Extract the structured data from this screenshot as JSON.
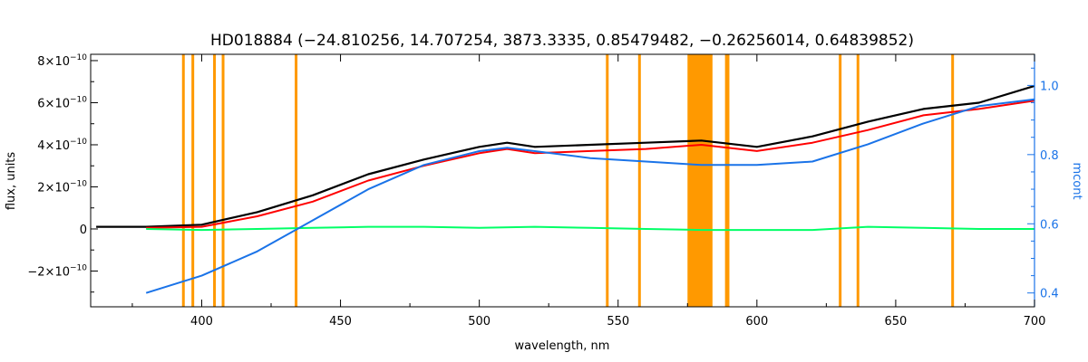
{
  "chart_data": {
    "type": "line",
    "title": "HD018884   (−24.810256, 14.707254, 3873.3335, 0.85479482, −0.26256014, 0.64839852)",
    "xlabel": "wavelength, nm",
    "ylabel": "flux, units",
    "ylabel_right": "mcont",
    "xlim": [
      360,
      700
    ],
    "ylim": [
      -3.7e-10,
      8.3e-10
    ],
    "ylim_right": [
      0.36,
      1.09
    ],
    "x_ticks": [
      "400",
      "450",
      "500",
      "550",
      "600",
      "650",
      "700"
    ],
    "x_tick_values": [
      400,
      450,
      500,
      550,
      600,
      650,
      700
    ],
    "y_ticks": [
      {
        "value": 8e-10,
        "label": "8×10",
        "exp": "−10"
      },
      {
        "value": 6e-10,
        "label": "6×10",
        "exp": "−10"
      },
      {
        "value": 4e-10,
        "label": "4×10",
        "exp": "−10"
      },
      {
        "value": 2e-10,
        "label": "2×10",
        "exp": "−10"
      },
      {
        "value": 0,
        "label": "0",
        "exp": ""
      },
      {
        "value": -2e-10,
        "label": "−2×10",
        "exp": "−10"
      }
    ],
    "y_ticks_right": [
      "0.4",
      "0.6",
      "0.8",
      "1.0"
    ],
    "y_tick_values_right": [
      0.4,
      0.6,
      0.8,
      1.0
    ],
    "masked_lines": [
      393.4,
      396.8,
      404.6,
      407.7,
      434.0,
      546.1,
      557.7,
      589.0,
      589.6,
      630.0,
      636.4,
      670.5
    ],
    "masked_band": [
      575,
      584
    ],
    "colors": {
      "observed": "#000000",
      "model": "#ff0000",
      "residual": "#00ff66",
      "continuum": "#1a73e8",
      "mask": "#ff9900",
      "band_highlight": "#ffff00",
      "right_axis": "#1a73e8"
    },
    "series": [
      {
        "id": "observed",
        "x": [
          362,
          380,
          400,
          420,
          440,
          460,
          480,
          500,
          510,
          520,
          540,
          560,
          580,
          600,
          620,
          640,
          660,
          680,
          700
        ],
        "y": [
          1e-11,
          1e-11,
          2e-11,
          8e-11,
          1.6e-10,
          2.6e-10,
          3.3e-10,
          3.9e-10,
          4.1e-10,
          3.9e-10,
          4e-10,
          4.1e-10,
          4.2e-10,
          3.9e-10,
          4.4e-10,
          5.1e-10,
          5.7e-10,
          6e-10,
          6.8e-10
        ]
      },
      {
        "id": "model",
        "x": [
          380,
          400,
          420,
          440,
          460,
          480,
          500,
          510,
          520,
          540,
          560,
          580,
          600,
          620,
          640,
          660,
          680,
          700
        ],
        "y": [
          5e-12,
          1e-11,
          6e-11,
          1.3e-10,
          2.3e-10,
          3e-10,
          3.6e-10,
          3.8e-10,
          3.6e-10,
          3.7e-10,
          3.8e-10,
          4e-10,
          3.7e-10,
          4.1e-10,
          4.7e-10,
          5.4e-10,
          5.7e-10,
          6.1e-10
        ]
      },
      {
        "id": "residual",
        "x": [
          380,
          400,
          420,
          440,
          460,
          480,
          500,
          520,
          540,
          560,
          580,
          600,
          620,
          640,
          660,
          680,
          700
        ],
        "y": [
          0.0,
          -5e-12,
          0.0,
          5e-12,
          1e-11,
          1e-11,
          5e-12,
          1e-11,
          5e-12,
          0.0,
          -5e-12,
          -5e-12,
          -5e-12,
          1e-11,
          5e-12,
          0.0,
          0.0
        ]
      },
      {
        "id": "continuum",
        "axis": "right",
        "x": [
          380,
          400,
          420,
          440,
          460,
          480,
          500,
          510,
          520,
          540,
          560,
          580,
          600,
          620,
          640,
          660,
          680,
          700
        ],
        "y": [
          0.4,
          0.45,
          0.52,
          0.61,
          0.7,
          0.77,
          0.81,
          0.82,
          0.81,
          0.79,
          0.78,
          0.77,
          0.77,
          0.78,
          0.83,
          0.89,
          0.94,
          0.96
        ]
      }
    ]
  }
}
